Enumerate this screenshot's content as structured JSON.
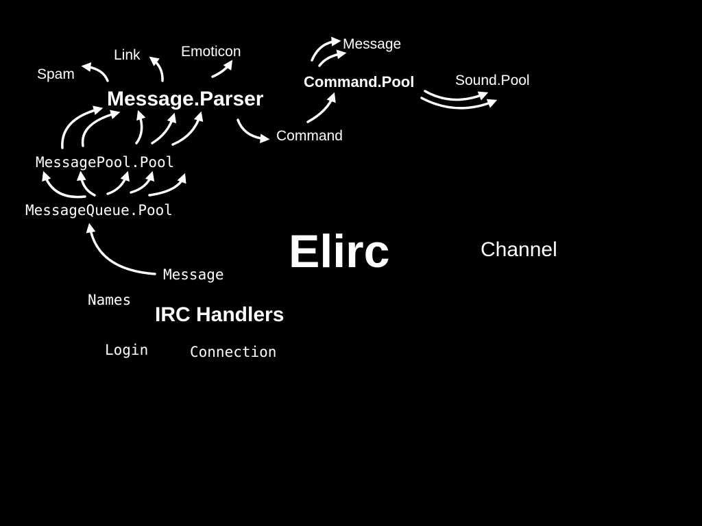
{
  "title": "Elirc",
  "nodes": {
    "spam": "Spam",
    "link": "Link",
    "emoticon": "Emoticon",
    "message_parser": "Message.Parser",
    "message_top": "Message",
    "command_pool": "Command.Pool",
    "sound_pool": "Sound.Pool",
    "command": "Command",
    "message_pool": "MessagePool.Pool",
    "message_queue": "MessageQueue.Pool",
    "channel": "Channel",
    "message_irc": "Message",
    "names": "Names",
    "irc_handlers": "IRC Handlers",
    "login": "Login",
    "connection": "Connection"
  },
  "colors": {
    "background": "#000000",
    "foreground": "#ffffff"
  }
}
